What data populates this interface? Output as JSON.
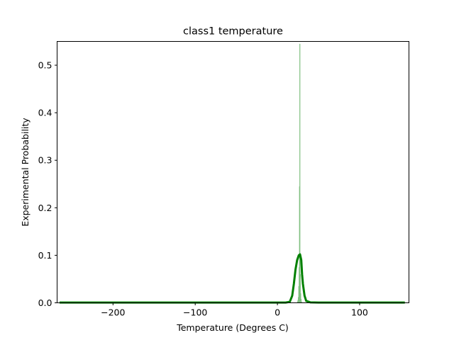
{
  "chart_data": {
    "type": "bar",
    "title": "class1 temperature",
    "xlabel": "Temperature (Degrees C)",
    "ylabel": "Experimental Probability",
    "xlim": [
      -268,
      160
    ],
    "ylim": [
      0,
      0.55
    ],
    "xticks": [
      -200,
      -100,
      0,
      100
    ],
    "xtick_labels": [
      "−200",
      "−100",
      "0",
      "100"
    ],
    "yticks": [
      0.0,
      0.1,
      0.2,
      0.3,
      0.4,
      0.5
    ],
    "ytick_labels": [
      "0.0",
      "0.1",
      "0.2",
      "0.3",
      "0.4",
      "0.5"
    ],
    "grid": false,
    "histogram": {
      "color": "#7fbf7f",
      "bins": [
        {
          "x": 24.5,
          "value": 0.003
        },
        {
          "x": 25.0,
          "value": 0.006
        },
        {
          "x": 25.5,
          "value": 0.012
        },
        {
          "x": 26.0,
          "value": 0.035
        },
        {
          "x": 26.5,
          "value": 0.075
        },
        {
          "x": 26.9,
          "value": 0.245
        },
        {
          "x": 27.3,
          "value": 0.545
        },
        {
          "x": 27.8,
          "value": 0.06
        },
        {
          "x": 28.3,
          "value": 0.02
        },
        {
          "x": 28.8,
          "value": 0.008
        },
        {
          "x": 29.3,
          "value": 0.003
        }
      ]
    },
    "density_curve": {
      "color": "#008000",
      "x": [
        -265,
        -200,
        -100,
        0,
        10,
        15,
        18,
        20,
        22,
        24,
        26,
        27.5,
        29,
        30,
        31,
        33,
        35,
        40,
        50,
        100,
        155
      ],
      "y": [
        0.0005,
        0.0005,
        0.0005,
        0.0005,
        0.0006,
        0.002,
        0.015,
        0.04,
        0.07,
        0.09,
        0.1,
        0.102,
        0.09,
        0.06,
        0.04,
        0.015,
        0.004,
        0.001,
        0.0005,
        0.0005,
        0.0005
      ]
    }
  }
}
